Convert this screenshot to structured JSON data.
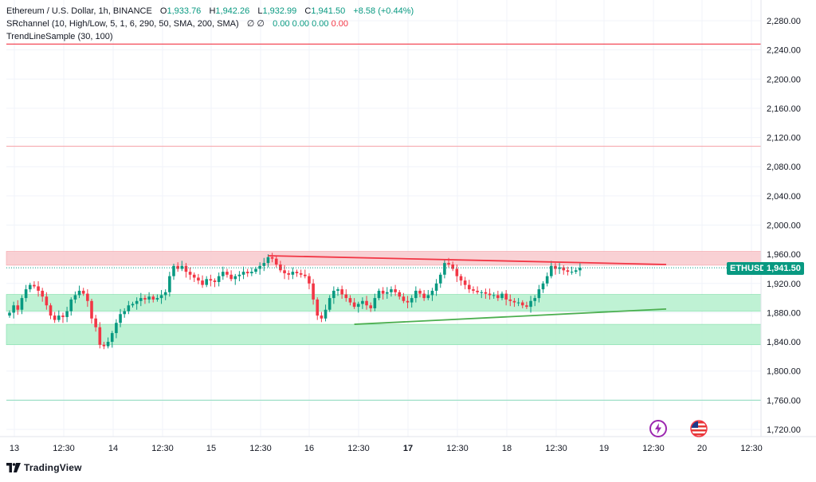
{
  "header": {
    "symbol_line": "Ethereum / U.S. Dollar, 1h, BINANCE",
    "o_label": "O",
    "o_value": "1,933.76",
    "h_label": "H",
    "h_value": "1,942.26",
    "l_label": "L",
    "l_value": "1,932.99",
    "c_label": "C",
    "c_value": "1,941.50",
    "change": "+8.58 (+0.44%)",
    "indicator1_name": "SRchannel (10, High/Low, 5, 1, 6, 290, 50, SMA, 200, SMA)",
    "indicator1_symbols": "∅ ∅",
    "indicator1_values": [
      "0.00",
      "0.00",
      "0.00",
      "0.00"
    ],
    "indicator2_name": "TrendLineSample (30, 100)"
  },
  "price_axis": {
    "ticks": [
      "2,280.00",
      "2,240.00",
      "2,200.00",
      "2,160.00",
      "2,120.00",
      "2,080.00",
      "2,040.00",
      "2,000.00",
      "1,960.00",
      "1,920.00",
      "1,880.00",
      "1,840.00",
      "1,800.00",
      "1,760.00",
      "1,720.00"
    ],
    "last_price": "1,941.50",
    "symbol_tag": "ETHUSD"
  },
  "time_axis": {
    "ticks": [
      "13",
      "12:30",
      "14",
      "12:30",
      "15",
      "12:30",
      "16",
      "12:30",
      "17",
      "12:30",
      "18",
      "12:30",
      "19",
      "12:30",
      "20",
      "12:30"
    ],
    "bold": [
      "17"
    ]
  },
  "colors": {
    "up": "#089981",
    "down": "#f23645",
    "resistance_zone": "#f8c9cc",
    "support_zone": "#b4f0cc",
    "trend_down": "#f23645",
    "trend_up": "#4caf50",
    "brand": "#131722"
  },
  "footer": {
    "brand": "TradingView"
  },
  "icons": [
    "lightning-icon",
    "us-flag-icon",
    "tradingview-logo-icon"
  ],
  "chart_data": {
    "type": "candlestick",
    "title": "Ethereum / U.S. Dollar, 1h, BINANCE",
    "ylim": [
      1710,
      2300
    ],
    "horizontal_levels": [
      {
        "price": 2248,
        "color": "#f23645"
      },
      {
        "price": 2108,
        "color": "#f7a9ae"
      },
      {
        "price": 1760,
        "color": "#9fe0c8"
      }
    ],
    "zones": [
      {
        "from": 1945,
        "to": 1964,
        "kind": "resistance"
      },
      {
        "from": 1882,
        "to": 1905,
        "kind": "support"
      },
      {
        "from": 1836,
        "to": 1864,
        "kind": "support"
      }
    ],
    "trendlines": [
      {
        "start_bar": 63,
        "start_price": 1958,
        "end_bar": 160,
        "end_price": 1946,
        "kind": "resistance"
      },
      {
        "start_bar": 84,
        "start_price": 1864,
        "end_bar": 160,
        "end_price": 1885,
        "kind": "support"
      }
    ],
    "closes": [
      1880,
      1890,
      1884,
      1900,
      1912,
      1918,
      1916,
      1910,
      1902,
      1890,
      1876,
      1870,
      1876,
      1874,
      1882,
      1898,
      1904,
      1910,
      1906,
      1896,
      1872,
      1860,
      1836,
      1834,
      1840,
      1852,
      1866,
      1878,
      1882,
      1890,
      1892,
      1896,
      1900,
      1898,
      1902,
      1898,
      1900,
      1904,
      1908,
      1930,
      1944,
      1940,
      1944,
      1936,
      1932,
      1928,
      1924,
      1918,
      1926,
      1924,
      1922,
      1930,
      1936,
      1932,
      1926,
      1930,
      1932,
      1936,
      1934,
      1936,
      1940,
      1944,
      1948,
      1956,
      1954,
      1946,
      1938,
      1934,
      1932,
      1936,
      1934,
      1932,
      1930,
      1920,
      1898,
      1876,
      1872,
      1884,
      1900,
      1910,
      1912,
      1905,
      1900,
      1894,
      1888,
      1892,
      1896,
      1890,
      1886,
      1900,
      1910,
      1906,
      1908,
      1912,
      1908,
      1902,
      1896,
      1894,
      1900,
      1910,
      1906,
      1900,
      1904,
      1910,
      1920,
      1932,
      1948,
      1946,
      1940,
      1930,
      1924,
      1918,
      1912,
      1910,
      1908,
      1908,
      1906,
      1904,
      1904,
      1900,
      1906,
      1898,
      1896,
      1894,
      1894,
      1890,
      1888,
      1896,
      1900,
      1912,
      1920,
      1930,
      1944,
      1940,
      1942,
      1938,
      1936,
      1936,
      1938,
      1941.5
    ]
  }
}
